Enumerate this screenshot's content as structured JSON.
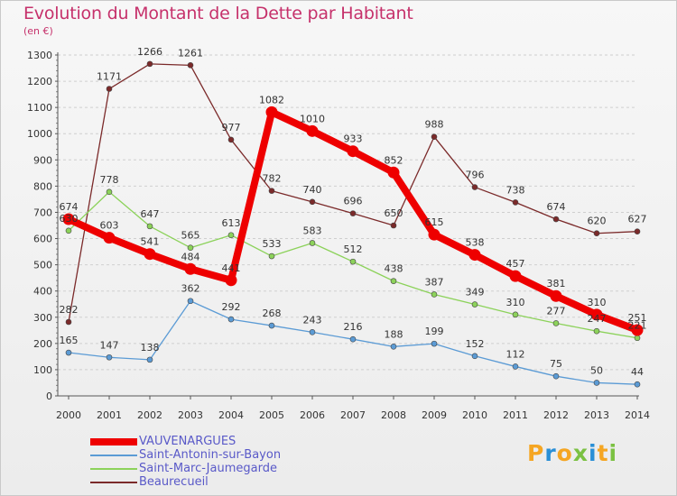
{
  "chart_data": {
    "type": "line",
    "title": "Evolution du Montant de la Dette par Habitant",
    "subtitle": "(en €)",
    "x": [
      2000,
      2001,
      2002,
      2003,
      2004,
      2005,
      2006,
      2007,
      2008,
      2009,
      2010,
      2011,
      2012,
      2013,
      2014
    ],
    "ylim": [
      0,
      1300
    ],
    "yticks": [
      0,
      100,
      200,
      300,
      400,
      500,
      600,
      700,
      800,
      900,
      1000,
      1100,
      1200,
      1300
    ],
    "grid": "horizontal dashed",
    "legend_position": "bottom-left",
    "series": [
      {
        "name": "VAUVENARGUES",
        "color": "#ee0000",
        "values": [
          674,
          603,
          541,
          484,
          441,
          1082,
          1010,
          933,
          852,
          615,
          538,
          457,
          381,
          310,
          251
        ]
      },
      {
        "name": "Saint-Antonin-sur-Bayon",
        "color": "#5b9bd5",
        "values": [
          165,
          147,
          138,
          362,
          292,
          268,
          243,
          216,
          188,
          199,
          152,
          112,
          75,
          50,
          44
        ]
      },
      {
        "name": "Saint-Marc-Jaumegarde",
        "color": "#8cd25a",
        "values": [
          630,
          778,
          647,
          565,
          613,
          533,
          583,
          512,
          438,
          387,
          349,
          310,
          277,
          247,
          221
        ]
      },
      {
        "name": "Beaurecueil",
        "color": "#7b2a2a",
        "values": [
          282,
          1171,
          1266,
          1261,
          977,
          782,
          740,
          696,
          650,
          988,
          796,
          738,
          674,
          620,
          627
        ]
      }
    ]
  },
  "brand": {
    "letters": [
      "P",
      "r",
      "o",
      "x",
      "i",
      "t",
      "i"
    ],
    "colors": [
      "#f5a623",
      "#2a8fd6",
      "#f5a623",
      "#7bc142",
      "#2a8fd6",
      "#f5a623",
      "#7bc142"
    ]
  }
}
